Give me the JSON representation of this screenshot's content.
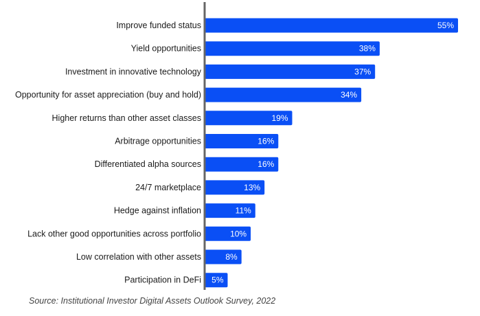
{
  "chart_data": {
    "type": "bar",
    "orientation": "horizontal",
    "categories": [
      "Improve funded status",
      "Yield opportunities",
      "Investment in innovative technology",
      "Opportunity for asset appreciation (buy and hold)",
      "Higher returns than other asset classes",
      "Arbitrage opportunities",
      "Differentiated alpha sources",
      "24/7 marketplace",
      "Hedge against inflation",
      "Lack other good opportunities across portfolio",
      "Low correlation with other assets",
      "Participation in DeFi"
    ],
    "values": [
      55,
      38,
      37,
      34,
      19,
      16,
      16,
      13,
      11,
      10,
      8,
      5
    ],
    "value_labels": [
      "55%",
      "38%",
      "37%",
      "34%",
      "19%",
      "16%",
      "16%",
      "13%",
      "11%",
      "10%",
      "8%",
      "5%"
    ],
    "xlim": [
      0,
      55
    ],
    "bar_color": "#0a4ff5",
    "axis_color": "#666666",
    "grid": false,
    "legend": "none"
  },
  "source": "Source: Institutional Investor Digital Assets Outlook Survey, 2022"
}
